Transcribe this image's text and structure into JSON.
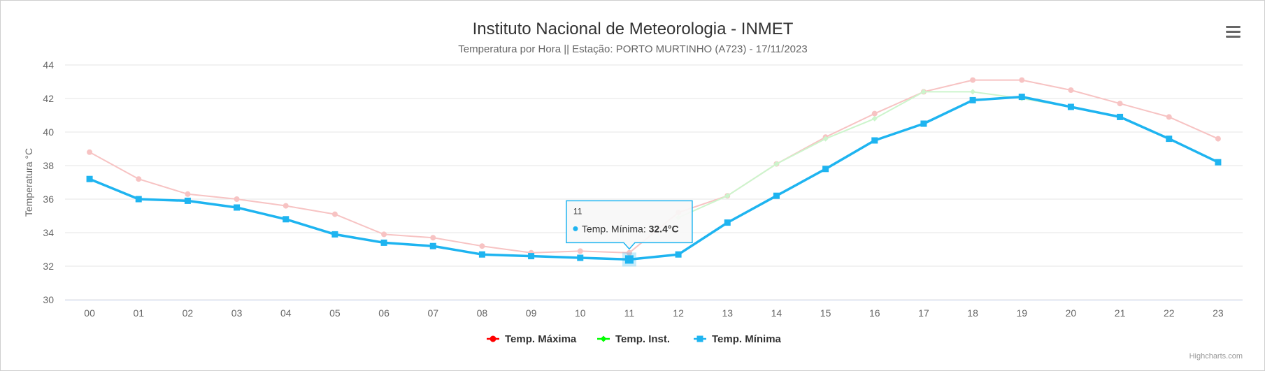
{
  "chart_data": {
    "type": "line",
    "title": "Instituto Nacional de Meteorologia - INMET",
    "subtitle": "Temperatura por Hora || Estação: PORTO MURTINHO (A723) - 17/11/2023",
    "ylabel": "Temperatura °C",
    "xlabel": "",
    "ylim": [
      30,
      44
    ],
    "yticks": [
      "30",
      "32",
      "34",
      "36",
      "38",
      "40",
      "42",
      "44"
    ],
    "categories": [
      "00",
      "01",
      "02",
      "03",
      "04",
      "05",
      "06",
      "07",
      "08",
      "09",
      "10",
      "11",
      "12",
      "13",
      "14",
      "15",
      "16",
      "17",
      "18",
      "19",
      "20",
      "21",
      "22",
      "23"
    ],
    "grid": "horizontal",
    "legend_position": "bottom",
    "series": [
      {
        "name": "Temp. Máxima",
        "color": "#ff0000",
        "faded_color": "#f7c3c3",
        "marker": "circle",
        "values": [
          38.8,
          37.2,
          36.3,
          36.0,
          35.6,
          35.1,
          33.9,
          33.7,
          33.2,
          32.8,
          32.9,
          32.8,
          35.2,
          36.2,
          38.1,
          39.7,
          41.1,
          42.4,
          43.1,
          43.1,
          42.5,
          41.7,
          40.9,
          39.6
        ]
      },
      {
        "name": "Temp. Inst.",
        "color": "#00ff00",
        "faded_color": "#ccf5cc",
        "marker": "diamond",
        "values": [
          null,
          null,
          null,
          null,
          null,
          null,
          null,
          null,
          null,
          null,
          null,
          null,
          34.9,
          36.2,
          38.1,
          39.6,
          40.8,
          42.4,
          42.4,
          42.0,
          41.5,
          null,
          null,
          null
        ]
      },
      {
        "name": "Temp. Mínima",
        "color": "#1eb4f0",
        "marker": "square",
        "values": [
          37.2,
          36.0,
          35.9,
          35.5,
          34.8,
          33.9,
          33.4,
          33.2,
          32.7,
          32.6,
          32.5,
          32.4,
          32.7,
          34.6,
          36.2,
          37.8,
          39.5,
          40.5,
          41.9,
          42.1,
          41.5,
          40.9,
          39.6,
          38.2
        ]
      }
    ],
    "tooltip": {
      "hour": "11",
      "series_label": "Temp. Mínima: ",
      "value_text": "32.4°C",
      "series_index": 2,
      "point_index": 11
    },
    "credits": "Highcharts.com"
  },
  "ui": {
    "menu_icon": "hamburger-menu-icon"
  }
}
